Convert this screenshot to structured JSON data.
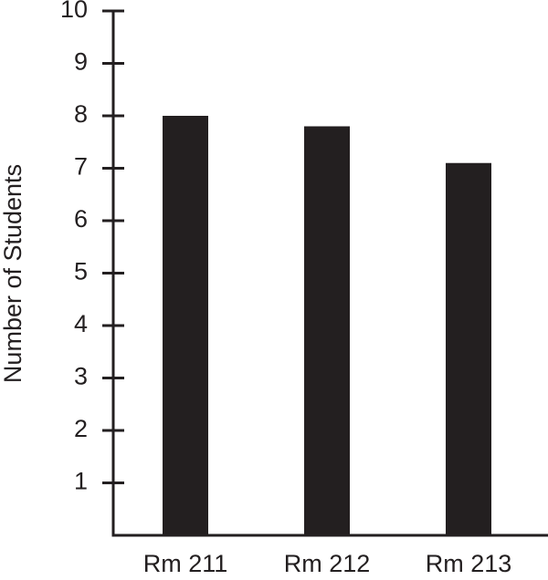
{
  "chart_data": {
    "type": "bar",
    "y_label": "Number of Students",
    "categories": [
      "Rm 211",
      "Rm 212",
      "Rm 213"
    ],
    "values": [
      8,
      7.8,
      7.1
    ],
    "color": "#231f20",
    "ylim": [
      0,
      10
    ],
    "yticks": [
      1,
      2,
      3,
      4,
      5,
      6,
      7,
      8,
      9,
      10
    ],
    "grid": false
  }
}
